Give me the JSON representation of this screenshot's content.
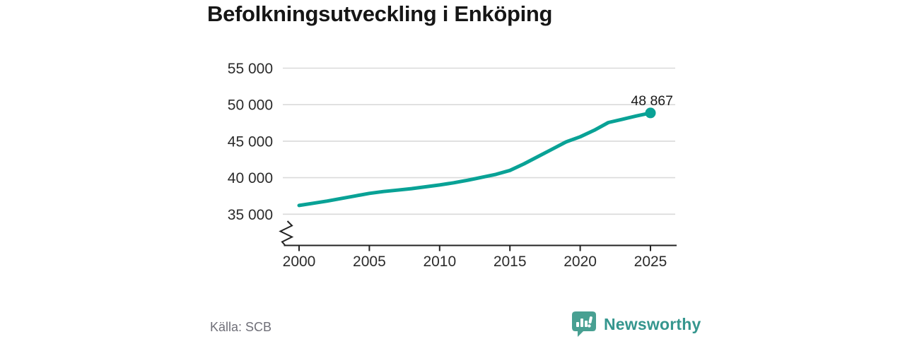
{
  "chart_data": {
    "type": "line",
    "title": "Befolkningsutveckling i Enköping",
    "xlabel": "",
    "ylabel": "",
    "x": [
      2000,
      2001,
      2002,
      2003,
      2004,
      2005,
      2006,
      2007,
      2008,
      2009,
      2010,
      2011,
      2012,
      2013,
      2014,
      2015,
      2016,
      2017,
      2018,
      2019,
      2020,
      2021,
      2022,
      2023,
      2024,
      2025
    ],
    "values": [
      36200,
      36500,
      36800,
      37150,
      37500,
      37850,
      38100,
      38300,
      38500,
      38750,
      39000,
      39300,
      39650,
      40050,
      40450,
      41000,
      41900,
      42900,
      43900,
      44900,
      45600,
      46500,
      47550,
      48000,
      48450,
      48867
    ],
    "x_ticks": [
      2000,
      2005,
      2010,
      2015,
      2020,
      2025
    ],
    "y_ticks": [
      {
        "value": 35000,
        "label": "35 000"
      },
      {
        "value": 40000,
        "label": "40 000"
      },
      {
        "value": 45000,
        "label": "45 000"
      },
      {
        "value": 50000,
        "label": "50 000"
      },
      {
        "value": 55000,
        "label": "55 000"
      }
    ],
    "ylim_displayed": [
      35000,
      55000
    ],
    "axis_break": true,
    "grid": "horizontal",
    "legend": "none",
    "end_value": 48867,
    "end_label": "48 867",
    "colors": {
      "line": "#09a296",
      "grid": "#dadada",
      "axis": "#232323",
      "tick_label": "#2b2b2b",
      "annotation": "#1a1a1a"
    }
  },
  "footer": {
    "source": "Källa: SCB",
    "brand": "Newsworthy",
    "brand_color": "#35968e",
    "icon_color": "#48a092"
  }
}
